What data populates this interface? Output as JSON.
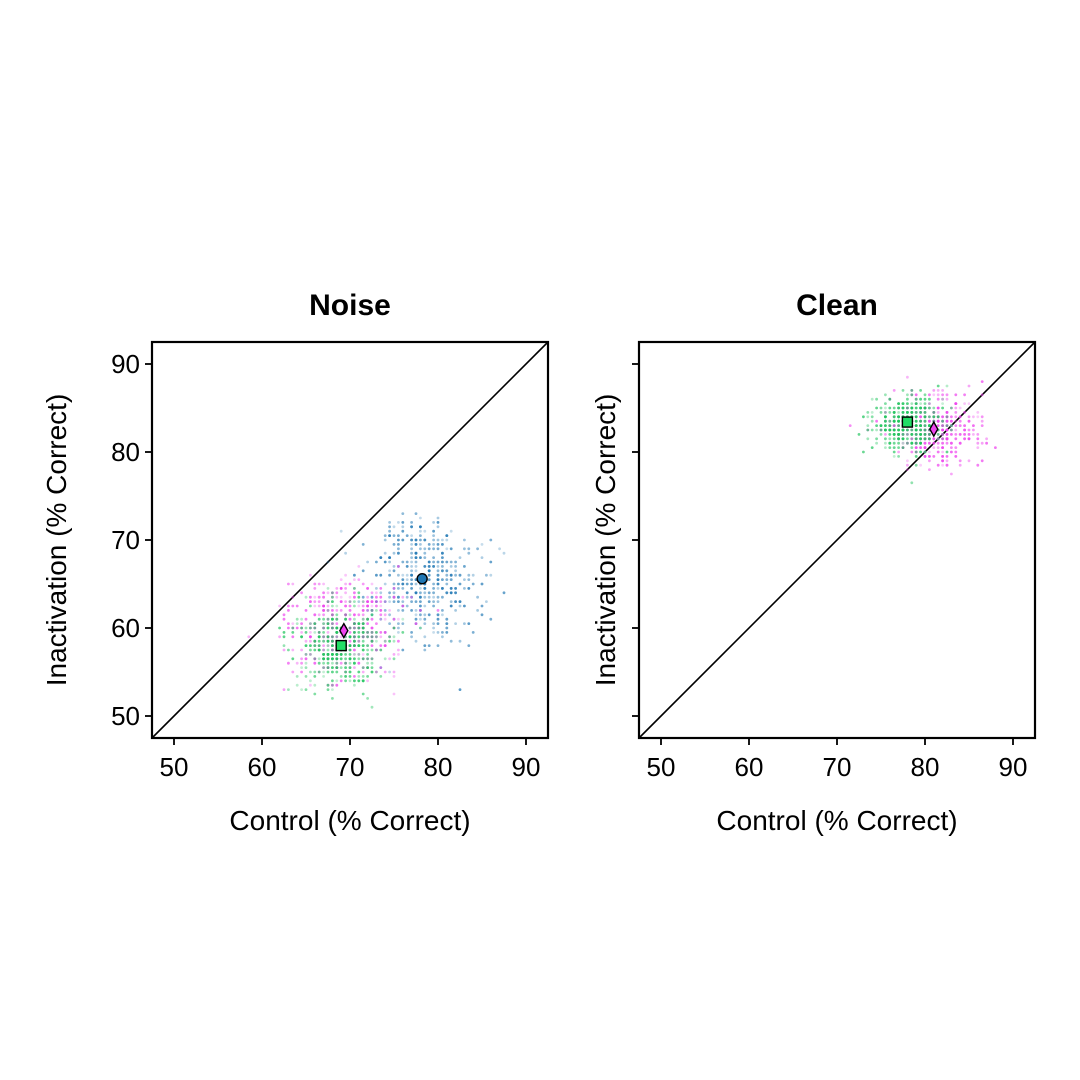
{
  "chart_data": [
    {
      "type": "scatter",
      "title": "Noise",
      "xlabel": "Control (% Correct)",
      "ylabel": "Inactivation (% Correct)",
      "xlim": [
        47.5,
        92.5
      ],
      "ylim": [
        47.5,
        92.5
      ],
      "xticks": [
        50,
        60,
        70,
        80,
        90
      ],
      "yticks": [
        50,
        60,
        70,
        80,
        90
      ],
      "show_y_tick_labels": true,
      "grid": false,
      "reference_line": "y = x",
      "clouds": [
        {
          "color": "#1f77b4",
          "center": [
            78.2,
            65.6
          ],
          "spread": [
            3.2,
            3.6
          ],
          "count": 420
        },
        {
          "color": "#ee44ee",
          "center": [
            69.3,
            59.6
          ],
          "spread": [
            3.2,
            2.8
          ],
          "count": 420
        },
        {
          "color": "#22c55e",
          "center": [
            69.0,
            58.0
          ],
          "spread": [
            2.4,
            2.3
          ],
          "count": 420
        }
      ],
      "means": [
        {
          "marker": "circle",
          "color": "#1f77b4",
          "x": 78.2,
          "y": 65.6
        },
        {
          "marker": "diamond",
          "color": "#ee44ee",
          "x": 69.3,
          "y": 59.7
        },
        {
          "marker": "square",
          "color": "#22dd66",
          "x": 69.0,
          "y": 58.0
        }
      ]
    },
    {
      "type": "scatter",
      "title": "Clean",
      "xlabel": "Control (% Correct)",
      "ylabel": "Inactivation (% Correct)",
      "xlim": [
        47.5,
        92.5
      ],
      "ylim": [
        47.5,
        92.5
      ],
      "xticks": [
        50,
        60,
        70,
        80,
        90
      ],
      "yticks": [
        50,
        60,
        70,
        80,
        90
      ],
      "show_y_tick_labels": false,
      "grid": false,
      "reference_line": "y = x",
      "clouds": [
        {
          "color": "#ee44ee",
          "center": [
            81.0,
            82.6
          ],
          "spread": [
            2.6,
            2.0
          ],
          "count": 420
        },
        {
          "color": "#22c55e",
          "center": [
            78.0,
            83.3
          ],
          "spread": [
            1.9,
            1.6
          ],
          "count": 420
        }
      ],
      "means": [
        {
          "marker": "square",
          "color": "#22dd66",
          "x": 78.0,
          "y": 83.4
        },
        {
          "marker": "diamond",
          "color": "#ee44ee",
          "x": 81.0,
          "y": 82.6
        }
      ]
    }
  ]
}
